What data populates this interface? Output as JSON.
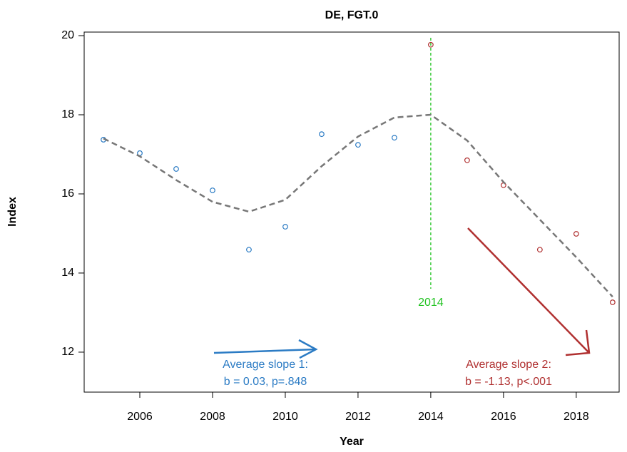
{
  "chart_data": {
    "type": "scatter",
    "title": "DE, FGT.0",
    "x_label": "Year",
    "y_label": "Index",
    "xlim": [
      2004.47,
      2019.18
    ],
    "ylim": [
      10.99,
      20.09
    ],
    "xticks": [
      2006,
      2008,
      2010,
      2012,
      2014,
      2016,
      2018
    ],
    "yticks": [
      12,
      14,
      16,
      18,
      20
    ],
    "series": [
      {
        "color": "#2b7bc4",
        "style": "points",
        "x": [
          2005,
          2006,
          2007,
          2008,
          2009,
          2010,
          2011,
          2012,
          2013
        ],
        "values": [
          17.37,
          17.03,
          16.63,
          16.09,
          14.59,
          15.17,
          17.51,
          17.24,
          17.42
        ]
      },
      {
        "color": "#b03030",
        "style": "points",
        "x": [
          2014,
          2015,
          2016,
          2017,
          2018,
          2019
        ],
        "values": [
          19.77,
          16.85,
          16.22,
          14.59,
          14.99,
          13.26
        ]
      },
      {
        "color": "#777777",
        "style": "dashed",
        "x": [
          2005,
          2006,
          2007,
          2008,
          2009,
          2010,
          2011,
          2012,
          2013,
          2014,
          2015,
          2016,
          2017,
          2018,
          2019
        ],
        "values": [
          17.4,
          16.95,
          16.35,
          15.8,
          15.55,
          15.85,
          16.7,
          17.45,
          17.93,
          18.0,
          17.35,
          16.3,
          15.35,
          14.4,
          13.4
        ]
      }
    ],
    "vline": 2014,
    "vline_color": "#22c322",
    "annotations": [
      {
        "lines": [
          "Average slope 1:",
          "b = 0.03, p=.848"
        ],
        "color": "#2b7bc4"
      },
      {
        "lines": [
          "Average slope 2:",
          "b = -1.13, p<.001"
        ],
        "color": "#b03030"
      }
    ]
  }
}
